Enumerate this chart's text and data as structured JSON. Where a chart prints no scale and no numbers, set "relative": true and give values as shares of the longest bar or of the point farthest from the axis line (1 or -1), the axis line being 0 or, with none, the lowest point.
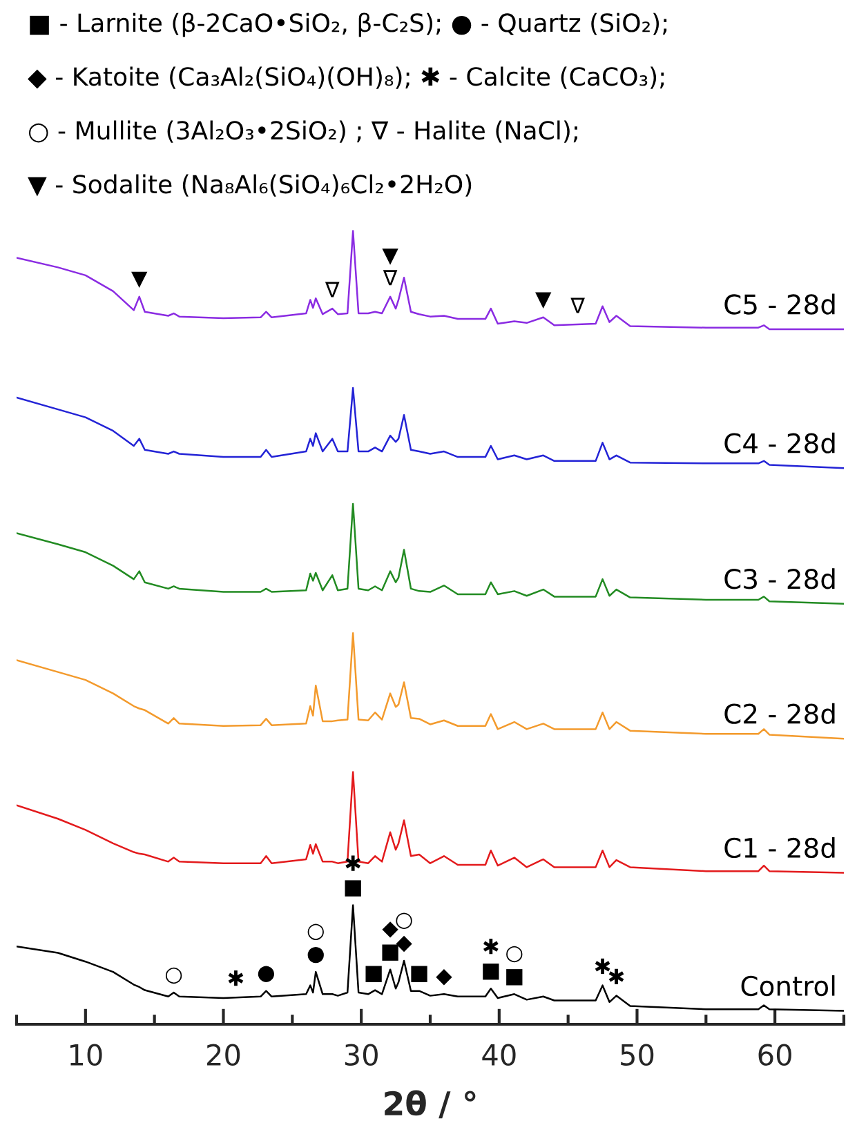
{
  "chart_data": {
    "type": "line",
    "relative": true,
    "xlabel": "2θ / °",
    "xlim": [
      5,
      65
    ],
    "xticks": [
      {
        "value": 5,
        "label": null
      },
      10,
      {
        "value": 15,
        "label": null
      },
      20,
      {
        "value": 25,
        "label": null
      },
      30,
      {
        "value": 35,
        "label": null
      },
      40,
      {
        "value": 45,
        "label": null
      },
      50,
      {
        "value": 55,
        "label": null
      },
      60,
      {
        "value": 65,
        "label": null
      }
    ],
    "grid": false,
    "legend": false,
    "line_style": "solid",
    "x": [
      5,
      8,
      10,
      12,
      13.5,
      13.9,
      14.3,
      16,
      16.4,
      16.8,
      20,
      22.7,
      23.1,
      23.5,
      26,
      26.3,
      26.5,
      26.7,
      27.2,
      27.9,
      28.3,
      29.0,
      29.4,
      29.8,
      30.5,
      31,
      31.5,
      32.1,
      32.5,
      32.7,
      33.1,
      33.6,
      34.2,
      35,
      36,
      37,
      39,
      39.4,
      39.9,
      41.1,
      42,
      43.2,
      44,
      47,
      47.5,
      48,
      48.5,
      49.5,
      55,
      58.8,
      59.2,
      59.6,
      65
    ],
    "series": [
      {
        "name": "Control",
        "color": "#000000",
        "values": [
          0.098,
          0.09,
          0.079,
          0.066,
          0.05,
          0.047,
          0.043,
          0.035,
          0.04,
          0.035,
          0.033,
          0.035,
          0.042,
          0.035,
          0.038,
          0.049,
          0.04,
          0.066,
          0.038,
          0.038,
          0.036,
          0.04,
          0.15,
          0.04,
          0.038,
          0.043,
          0.038,
          0.069,
          0.045,
          0.053,
          0.08,
          0.042,
          0.042,
          0.036,
          0.038,
          0.035,
          0.035,
          0.045,
          0.033,
          0.038,
          0.031,
          0.035,
          0.03,
          0.03,
          0.049,
          0.028,
          0.036,
          0.023,
          0.019,
          0.019,
          0.024,
          0.019,
          0.017
        ]
      },
      {
        "name": "C1 - 28d",
        "color": "#e31a1c",
        "values": [
          0.276,
          0.259,
          0.245,
          0.228,
          0.217,
          0.215,
          0.214,
          0.205,
          0.21,
          0.205,
          0.203,
          0.203,
          0.212,
          0.203,
          0.208,
          0.226,
          0.215,
          0.227,
          0.205,
          0.205,
          0.203,
          0.205,
          0.318,
          0.205,
          0.203,
          0.212,
          0.205,
          0.242,
          0.22,
          0.228,
          0.257,
          0.212,
          0.214,
          0.203,
          0.212,
          0.201,
          0.201,
          0.219,
          0.2,
          0.21,
          0.198,
          0.208,
          0.198,
          0.198,
          0.219,
          0.198,
          0.207,
          0.198,
          0.193,
          0.193,
          0.2,
          0.193,
          0.191
        ]
      },
      {
        "name": "C2 - 28d",
        "color": "#f39a2c",
        "values": [
          0.459,
          0.444,
          0.434,
          0.417,
          0.401,
          0.398,
          0.396,
          0.379,
          0.386,
          0.379,
          0.376,
          0.377,
          0.385,
          0.377,
          0.379,
          0.401,
          0.389,
          0.427,
          0.382,
          0.382,
          0.383,
          0.384,
          0.493,
          0.384,
          0.383,
          0.393,
          0.384,
          0.417,
          0.4,
          0.403,
          0.431,
          0.386,
          0.385,
          0.378,
          0.383,
          0.376,
          0.376,
          0.391,
          0.372,
          0.381,
          0.372,
          0.379,
          0.372,
          0.372,
          0.393,
          0.372,
          0.381,
          0.37,
          0.366,
          0.366,
          0.372,
          0.365,
          0.36
        ]
      },
      {
        "name": "C3 - 28d",
        "color": "#228b22",
        "values": [
          0.619,
          0.605,
          0.595,
          0.578,
          0.561,
          0.571,
          0.557,
          0.549,
          0.552,
          0.549,
          0.545,
          0.545,
          0.549,
          0.545,
          0.547,
          0.568,
          0.559,
          0.569,
          0.547,
          0.566,
          0.547,
          0.549,
          0.656,
          0.549,
          0.547,
          0.552,
          0.547,
          0.571,
          0.557,
          0.563,
          0.598,
          0.549,
          0.546,
          0.545,
          0.553,
          0.542,
          0.542,
          0.557,
          0.542,
          0.546,
          0.54,
          0.548,
          0.539,
          0.539,
          0.561,
          0.54,
          0.548,
          0.538,
          0.535,
          0.535,
          0.539,
          0.533,
          0.53
        ]
      },
      {
        "name": "C4 - 28d",
        "color": "#2323d6",
        "values": [
          0.79,
          0.775,
          0.765,
          0.748,
          0.729,
          0.738,
          0.724,
          0.719,
          0.722,
          0.719,
          0.715,
          0.715,
          0.724,
          0.715,
          0.722,
          0.738,
          0.729,
          0.745,
          0.722,
          0.738,
          0.722,
          0.722,
          0.802,
          0.722,
          0.722,
          0.727,
          0.722,
          0.742,
          0.734,
          0.738,
          0.768,
          0.724,
          0.722,
          0.719,
          0.722,
          0.715,
          0.715,
          0.729,
          0.712,
          0.717,
          0.712,
          0.717,
          0.71,
          0.71,
          0.733,
          0.712,
          0.717,
          0.708,
          0.707,
          0.707,
          0.71,
          0.705,
          0.701
        ]
      },
      {
        "name": "C5 - 28d",
        "color": "#8a2be2",
        "values": [
          0.966,
          0.954,
          0.944,
          0.924,
          0.9,
          0.917,
          0.898,
          0.893,
          0.896,
          0.892,
          0.89,
          0.891,
          0.898,
          0.891,
          0.896,
          0.913,
          0.903,
          0.915,
          0.895,
          0.902,
          0.895,
          0.896,
          1.0,
          0.896,
          0.896,
          0.898,
          0.896,
          0.917,
          0.902,
          0.913,
          0.941,
          0.898,
          0.895,
          0.892,
          0.893,
          0.889,
          0.889,
          0.902,
          0.883,
          0.886,
          0.884,
          0.891,
          0.881,
          0.883,
          0.905,
          0.885,
          0.893,
          0.88,
          0.878,
          0.878,
          0.881,
          0.876,
          0.876
        ]
      }
    ],
    "annotations": [
      "■ - Larnite (β-2CaO•SiO₂, β-C₂S); ● - Quartz (SiO₂);",
      "◆ - Katoite (Ca₃Al₂(SiO₄)(OH)₈); ✱ - Calcite (CaCO₃);",
      "○ - Mullite (3Al₂O₃•2SiO₂) ; ∇ - Halite (NaCl);",
      "▼ - Sodalite (Na₈Al₆(SiO₄)₆Cl₂•2H₂O)",
      {
        "text": "▼",
        "x": 13.9,
        "y": 0.917
      },
      {
        "text": "∇",
        "x": 27.9,
        "y": 0.902
      },
      {
        "text": "∇",
        "x": 32.1,
        "y": 0.917
      },
      {
        "text": "▼",
        "x": 32.1,
        "y": 0.917
      },
      {
        "text": "▼",
        "x": 43.2,
        "y": 0.891
      },
      {
        "text": "∇",
        "x": 45.7,
        "y": 0.882
      },
      {
        "text": "○",
        "x": 16.4,
        "y": 0.04
      },
      {
        "text": "✱",
        "x": 20.9,
        "y": 0.034
      },
      {
        "text": "●",
        "x": 23.1,
        "y": 0.042
      },
      {
        "text": "●",
        "x": 26.7,
        "y": 0.066
      },
      {
        "text": "○",
        "x": 26.7,
        "y": 0.066
      },
      {
        "text": "■",
        "x": 29.4,
        "y": 0.15
      },
      {
        "text": "✱",
        "x": 29.4,
        "y": 0.15
      },
      {
        "text": "■",
        "x": 32.1,
        "y": 0.069
      },
      {
        "text": "◆",
        "x": 32.1,
        "y": 0.069
      },
      {
        "text": "◆",
        "x": 33.1,
        "y": 0.08
      },
      {
        "text": "○",
        "x": 33.1,
        "y": 0.08
      },
      {
        "text": "■",
        "x": 30.9,
        "y": 0.042
      },
      {
        "text": "■",
        "x": 34.2,
        "y": 0.042
      },
      {
        "text": "◆",
        "x": 36,
        "y": 0.038
      },
      {
        "text": "■",
        "x": 39.4,
        "y": 0.045
      },
      {
        "text": "✱",
        "x": 39.4,
        "y": 0.045
      },
      {
        "text": "■",
        "x": 41.1,
        "y": 0.038
      },
      {
        "text": "○",
        "x": 41.1,
        "y": 0.038
      },
      {
        "text": "✱",
        "x": 47.5,
        "y": 0.049
      },
      {
        "text": "✱",
        "x": 48.5,
        "y": 0.036
      }
    ]
  }
}
